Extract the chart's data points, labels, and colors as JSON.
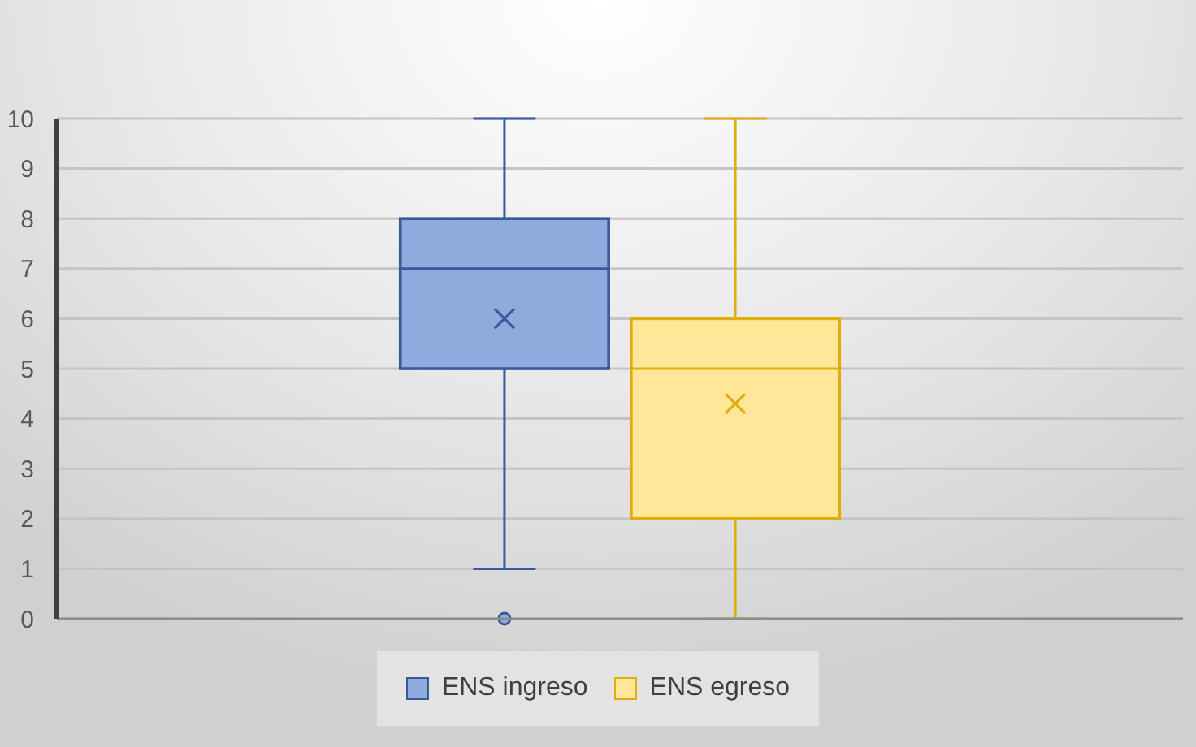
{
  "chart_data": {
    "type": "box",
    "categories": [
      null
    ],
    "series": [
      {
        "name": "ENS ingreso",
        "color": "#8faadc",
        "boxes": [
          {
            "low": 1,
            "q1": 5,
            "median": 7,
            "q3": 8,
            "high": 10,
            "mean": 6,
            "outliers": [
              0
            ]
          }
        ]
      },
      {
        "name": "ENS egreso",
        "color": "#ffe699",
        "boxes": [
          {
            "low": 0,
            "q1": 2,
            "median": 5,
            "q3": 6,
            "high": 10,
            "mean": 4.3
          }
        ]
      }
    ],
    "ylim": [
      0,
      10
    ],
    "yticks": [
      0,
      1,
      2,
      3,
      4,
      5,
      6,
      7,
      8,
      9,
      10
    ],
    "grid": "y",
    "legend": "bottom"
  }
}
